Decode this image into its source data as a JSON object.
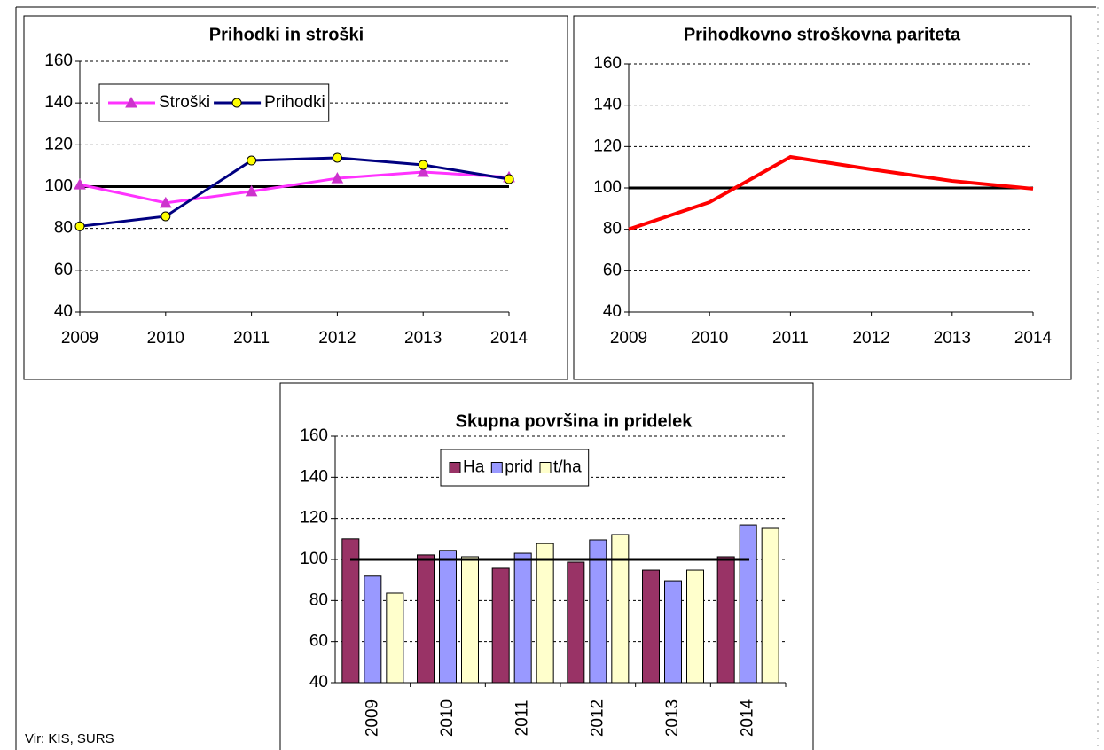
{
  "chart_data": [
    {
      "type": "line",
      "title": "Prihodki in stroški",
      "categories": [
        2009,
        2010,
        2011,
        2012,
        2013,
        2014
      ],
      "series": [
        {
          "name": "Stroški",
          "color": "#ff33ff",
          "marker": "triangle",
          "marker_color": "#cc33cc",
          "values": [
            101,
            92.2,
            97.7,
            104,
            107,
            104.5
          ]
        },
        {
          "name": "Prihodki",
          "color": "#000080",
          "marker": "circle",
          "marker_color": "#ffff00",
          "values": [
            81,
            85.8,
            112.5,
            113.8,
            110.4,
            103.6
          ]
        }
      ],
      "hline": 100,
      "ylim": [
        40,
        160
      ],
      "yticks": [
        40,
        60,
        80,
        100,
        120,
        140,
        160
      ],
      "grid": true,
      "legend": "upper left"
    },
    {
      "type": "line",
      "title": "Prihodkovno stroškovna pariteta",
      "categories": [
        2009,
        2010,
        2011,
        2012,
        2013,
        2014
      ],
      "series": [
        {
          "color": "#ff0000",
          "values": [
            80,
            93.1,
            115,
            109,
            103.4,
            99.6
          ]
        }
      ],
      "hline": 100,
      "ylim": [
        40,
        160
      ],
      "yticks": [
        40,
        60,
        80,
        100,
        120,
        140,
        160
      ],
      "grid": true
    },
    {
      "type": "bar",
      "title": "Skupna površina in pridelek",
      "categories": [
        2009,
        2010,
        2011,
        2012,
        2013,
        2014
      ],
      "series": [
        {
          "name": "Ha",
          "color": "#993366",
          "values": [
            110,
            102.2,
            95.7,
            98.7,
            94.8,
            101.3
          ]
        },
        {
          "name": "prid",
          "color": "#9999ff",
          "values": [
            91.9,
            104.4,
            103,
            109.5,
            89.6,
            116.8
          ]
        },
        {
          "name": "t/ha",
          "color": "#ffffcc",
          "values": [
            83.6,
            101.3,
            107.7,
            112.1,
            94.8,
            115.1
          ]
        }
      ],
      "hline": 100,
      "ylim": [
        40,
        160
      ],
      "yticks": [
        40,
        60,
        80,
        100,
        120,
        140,
        160
      ],
      "grid": true,
      "legend": "upper left",
      "xtick_rotation": 90
    }
  ],
  "source": "Vir: KIS, SURS"
}
